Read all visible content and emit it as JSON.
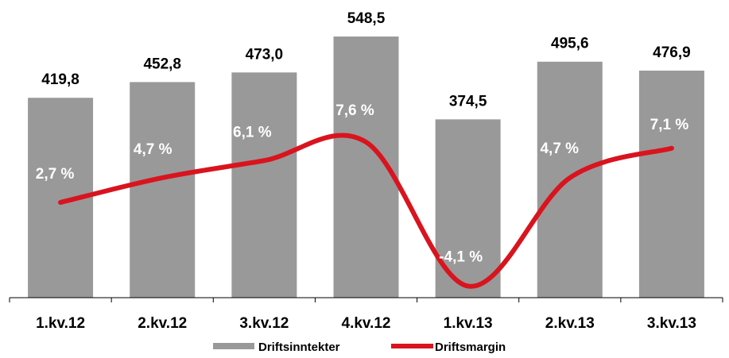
{
  "chart_data": {
    "type": "bar",
    "categories": [
      "1.kv.12",
      "2.kv.12",
      "3.kv.12",
      "4.kv.12",
      "1.kv.13",
      "2.kv.13",
      "3.kv.13"
    ],
    "series": [
      {
        "name": "Driftsinntekter",
        "type": "bar",
        "values": [
          419.8,
          452.8,
          473.0,
          548.5,
          374.5,
          495.6,
          476.9
        ],
        "labels": [
          "419,8",
          "452,8",
          "473,0",
          "548,5",
          "374,5",
          "495,6",
          "476,9"
        ],
        "color": "#999999"
      },
      {
        "name": "Driftsmargin",
        "type": "line",
        "values": [
          2.7,
          4.7,
          6.1,
          7.6,
          -4.1,
          4.7,
          7.1
        ],
        "labels": [
          "2,7 %",
          "4,7 %",
          "6,1 %",
          "7,6 %",
          "-4,1 %",
          "4,7 %",
          "7,1 %"
        ],
        "color": "#d9141e"
      }
    ],
    "ylim": [
      0,
      560
    ],
    "y2lim": [
      -6,
      12
    ],
    "grid": false,
    "legend": "bottom"
  }
}
